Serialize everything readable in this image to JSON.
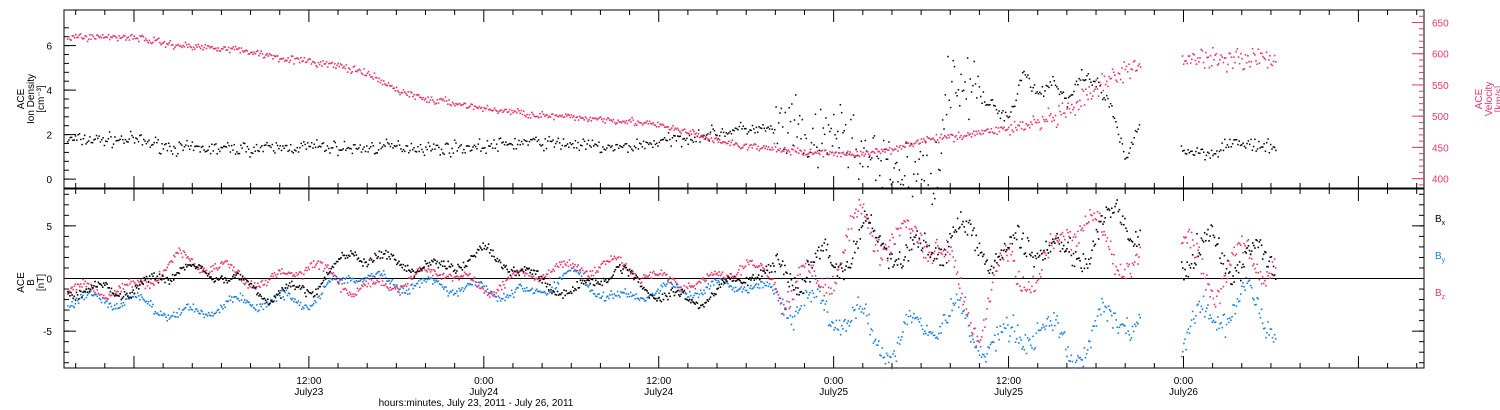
{
  "colors": {
    "axis": "#000000",
    "black": "#000000",
    "pink": "#e8356a",
    "blue": "#1a7fdc"
  },
  "chart_data": [
    {
      "type": "scatter",
      "panel": "top",
      "left_ylabel_lines": [
        "ACE",
        "Ion Density",
        "[cm⁻³]"
      ],
      "right_ylabel_lines": [
        "ACE",
        "Velocity",
        "[km/s]"
      ],
      "left_ylim": [
        -0.4,
        7.6
      ],
      "left_ticks": [
        "0",
        "2",
        "4",
        "6"
      ],
      "right_ylim": [
        385,
        670
      ],
      "right_ticks": [
        "400",
        "450",
        "500",
        "550",
        "600",
        "650"
      ],
      "series": [
        {
          "color": "black",
          "axis": "left",
          "x": [
            0,
            3,
            6,
            9,
            12,
            15,
            18,
            21,
            24,
            27,
            30,
            33,
            36,
            39,
            42,
            45,
            47,
            48,
            50,
            51,
            53,
            54,
            55,
            56,
            58,
            60,
            61,
            62,
            63,
            64,
            65,
            66,
            67,
            68,
            69,
            70,
            72,
            74,
            75,
            78
          ],
          "y": [
            1.8,
            1.4,
            1.4,
            1.4,
            1.5,
            1.4,
            1.5,
            1.4,
            1.5,
            1.7,
            1.6,
            1.4,
            1.7,
            2.0,
            2.3,
            2.2,
            1.4,
            2.4,
            1.2,
            0.5,
            0.4,
            0.3,
            0.4,
            4.8,
            3.7,
            2.8,
            4.9,
            3.8,
            4.5,
            3.5,
            4.6,
            4.3,
            3.2,
            0.8,
            2.8,
            2.5,
            1.3,
            1.2,
            1.7,
            1.4
          ]
        },
        {
          "color": "pink",
          "axis": "right",
          "x": [
            0,
            2,
            4,
            6,
            8,
            10,
            12,
            14,
            16,
            18,
            20,
            22,
            24,
            26,
            28,
            30,
            32,
            34,
            36,
            38,
            40,
            42,
            44,
            46,
            48,
            50,
            52,
            54,
            56,
            58,
            60,
            62,
            64,
            66,
            68,
            70,
            72,
            74
          ],
          "y": [
            628,
            618,
            612,
            611,
            604,
            595,
            588,
            582,
            568,
            543,
            528,
            522,
            513,
            508,
            502,
            499,
            497,
            493,
            486,
            475,
            462,
            452,
            449,
            443,
            442,
            440,
            449,
            462,
            468,
            475,
            482,
            490,
            505,
            545,
            575,
            578,
            596,
            594
          ]
        }
      ]
    },
    {
      "type": "scatter",
      "panel": "bottom",
      "ylabel_lines": [
        "ACE",
        "B",
        "[nT]"
      ],
      "ylim": [
        -8.5,
        8.5
      ],
      "ticks": [
        "-5",
        "0",
        "5"
      ],
      "legend": [
        {
          "label": "B",
          "sub": "x",
          "color": "black"
        },
        {
          "label": "B",
          "sub": "y",
          "color": "blue"
        },
        {
          "label": "B",
          "sub": "z",
          "color": "pink"
        }
      ],
      "series": [
        {
          "color": "black",
          "x": [
            0,
            3,
            6,
            9,
            12,
            15,
            18,
            21,
            24,
            27,
            30,
            33,
            36,
            39,
            42,
            45,
            48,
            50,
            52,
            54,
            56,
            58,
            60,
            62,
            64,
            66,
            68,
            70,
            72,
            74,
            76,
            78
          ],
          "y": [
            -1.0,
            1.0,
            0.5,
            -1.5,
            -1.0,
            2.5,
            1.5,
            1.0,
            2.5,
            0.5,
            -1.5,
            1.0,
            -1.5,
            -2.0,
            0.5,
            0.5,
            1.5,
            4.0,
            3.0,
            2.0,
            4.5,
            3.0,
            2.0,
            4.0,
            1.5,
            4.5,
            5.5,
            4.0,
            2.0,
            3.0,
            1.5,
            2.0
          ]
        },
        {
          "color": "blue",
          "x": [
            0,
            3,
            6,
            9,
            12,
            15,
            18,
            21,
            24,
            27,
            30,
            33,
            36,
            39,
            42,
            45,
            48,
            50,
            52,
            54,
            56,
            58,
            60,
            62,
            64,
            66,
            68,
            70,
            72,
            74,
            76,
            78
          ],
          "y": [
            -2.0,
            -3.5,
            -2.5,
            -2.0,
            -2.0,
            0.5,
            -0.5,
            -0.5,
            -1.0,
            -1.5,
            0.5,
            -2.0,
            -1.0,
            -1.0,
            -0.5,
            -2.0,
            -3.0,
            -4.5,
            -6.5,
            -4.0,
            -3.5,
            -5.5,
            -6.0,
            -4.0,
            -7.0,
            -5.0,
            -3.0,
            -5.5,
            -5.5,
            -3.5,
            -2.0,
            -4.0
          ]
        },
        {
          "color": "pink",
          "x": [
            0,
            3,
            6,
            9,
            12,
            15,
            18,
            21,
            24,
            27,
            30,
            33,
            36,
            39,
            42,
            45,
            48,
            50,
            52,
            54,
            56,
            58,
            60,
            62,
            64,
            66,
            68,
            70,
            72,
            74,
            76,
            78
          ],
          "y": [
            -1.0,
            2.0,
            1.0,
            -0.5,
            1.5,
            -1.0,
            -0.5,
            1.0,
            -1.0,
            0.5,
            1.0,
            1.5,
            0.0,
            -0.5,
            1.5,
            -1.0,
            1.0,
            6.0,
            3.0,
            5.0,
            1.0,
            -4.5,
            2.5,
            -1.0,
            5.5,
            4.5,
            1.5,
            0.5,
            3.0,
            -0.5,
            2.0,
            1.5
          ]
        }
      ]
    }
  ],
  "x_axis": {
    "xlim_hours": [
      -4.8,
      88.5
    ],
    "ticks": [
      {
        "h": 12,
        "time": "12:00",
        "date": "July23"
      },
      {
        "h": 24,
        "time": "0:00",
        "date": "July24"
      },
      {
        "h": 36,
        "time": "12:00",
        "date": "July24"
      },
      {
        "h": 48,
        "time": "0:00",
        "date": "July25"
      },
      {
        "h": 60,
        "time": "12:00",
        "date": "July25"
      },
      {
        "h": 72,
        "time": "0:00",
        "date": "July26"
      }
    ],
    "label": "hours:minutes, July 23, 2011 - July 26, 2011"
  }
}
